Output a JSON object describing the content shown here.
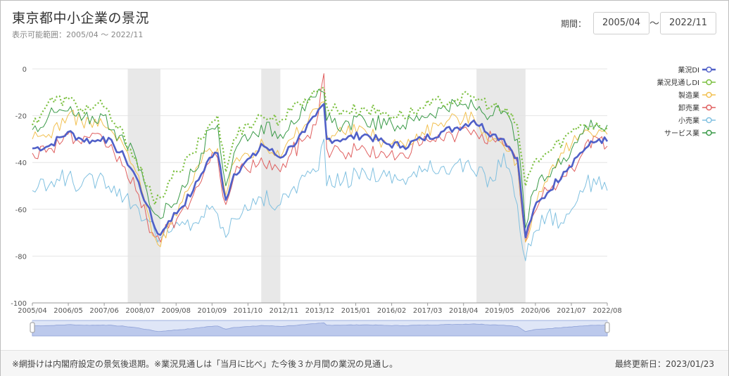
{
  "header": {
    "title": "東京都中小企業の景況",
    "subtitle": "表示可能範囲：2005/04 ～ 2022/11",
    "period_label": "期間：",
    "start_date": "2005/04",
    "tilde": "～",
    "end_date": "2022/11"
  },
  "footer": {
    "note": "※網掛けは内閣府設定の景気後退期。※業況見通しは「当月に比べ」た今後３か月間の業況の見通し。",
    "updated": "最終更新日：2023/01/23"
  },
  "colors": {
    "業況DI": "#5060c8",
    "業況見通しDI": "#7cc040",
    "製造業": "#f2c050",
    "卸売業": "#e06060",
    "小売業": "#80c0e0",
    "サービス業": "#3a9a48",
    "recession": "#e8e8e8"
  },
  "chart_data": {
    "type": "line",
    "x_start": "2005/04",
    "x_end": "2022/11",
    "x_tick_labels": [
      "2005/04",
      "2006/05",
      "2007/06",
      "2008/07",
      "2009/08",
      "2010/09",
      "2011/10",
      "2012/11",
      "2013/12",
      "2015/01",
      "2016/02",
      "2017/03",
      "2018/04",
      "2019/05",
      "2020/06",
      "2021/07",
      "2022/08"
    ],
    "y_ticks": [
      0,
      -20,
      -40,
      -60,
      -80,
      -100
    ],
    "ylim": [
      -100,
      0
    ],
    "grid": true,
    "legend_position": "right",
    "recession_periods": [
      [
        "2008/03",
        "2009/03"
      ],
      [
        "2012/04",
        "2012/11"
      ],
      [
        "2018/11",
        "2020/05"
      ]
    ],
    "series": [
      {
        "name": "業況DI",
        "key": "gyokyo",
        "anchors": [
          [
            "2005/04",
            -34
          ],
          [
            "2005/10",
            -33
          ],
          [
            "2006/05",
            -27
          ],
          [
            "2006/10",
            -30
          ],
          [
            "2007/03",
            -31
          ],
          [
            "2007/06",
            -29
          ],
          [
            "2007/10",
            -33
          ],
          [
            "2008/02",
            -38
          ],
          [
            "2008/06",
            -46
          ],
          [
            "2008/10",
            -58
          ],
          [
            "2009/01",
            -68
          ],
          [
            "2009/03",
            -71
          ],
          [
            "2009/06",
            -65
          ],
          [
            "2009/10",
            -60
          ],
          [
            "2010/03",
            -52
          ],
          [
            "2010/06",
            -45
          ],
          [
            "2010/09",
            -38
          ],
          [
            "2010/12",
            -36
          ],
          [
            "2011/03",
            -56
          ],
          [
            "2011/06",
            -45
          ],
          [
            "2011/10",
            -40
          ],
          [
            "2012/02",
            -37
          ],
          [
            "2012/04",
            -32
          ],
          [
            "2012/11",
            -38
          ],
          [
            "2013/03",
            -33
          ],
          [
            "2013/08",
            -27
          ],
          [
            "2013/12",
            -20
          ],
          [
            "2014/03",
            -15
          ],
          [
            "2014/04",
            -30
          ],
          [
            "2014/10",
            -30
          ],
          [
            "2015/06",
            -28
          ],
          [
            "2016/02",
            -32
          ],
          [
            "2016/08",
            -33
          ],
          [
            "2017/03",
            -30
          ],
          [
            "2017/10",
            -27
          ],
          [
            "2018/04",
            -25
          ],
          [
            "2018/10",
            -22
          ],
          [
            "2019/05",
            -28
          ],
          [
            "2019/09",
            -30
          ],
          [
            "2020/02",
            -38
          ],
          [
            "2020/05",
            -72
          ],
          [
            "2020/08",
            -60
          ],
          [
            "2021/01",
            -53
          ],
          [
            "2021/07",
            -44
          ],
          [
            "2022/01",
            -36
          ],
          [
            "2022/03",
            -34
          ],
          [
            "2022/08",
            -30
          ],
          [
            "2022/11",
            -31
          ]
        ]
      },
      {
        "name": "業況見通しDI",
        "key": "mitoshi",
        "anchors": [
          [
            "2005/04",
            -24
          ],
          [
            "2005/10",
            -14
          ],
          [
            "2006/05",
            -13
          ],
          [
            "2006/10",
            -17
          ],
          [
            "2007/06",
            -16
          ],
          [
            "2007/10",
            -23
          ],
          [
            "2008/02",
            -30
          ],
          [
            "2008/06",
            -38
          ],
          [
            "2008/10",
            -50
          ],
          [
            "2009/01",
            -58
          ],
          [
            "2009/03",
            -55
          ],
          [
            "2009/06",
            -48
          ],
          [
            "2009/10",
            -44
          ],
          [
            "2010/03",
            -36
          ],
          [
            "2010/06",
            -30
          ],
          [
            "2010/09",
            -24
          ],
          [
            "2010/12",
            -20
          ],
          [
            "2011/03",
            -44
          ],
          [
            "2011/06",
            -30
          ],
          [
            "2011/10",
            -24
          ],
          [
            "2012/02",
            -22
          ],
          [
            "2012/04",
            -20
          ],
          [
            "2012/11",
            -22
          ],
          [
            "2013/03",
            -18
          ],
          [
            "2013/08",
            -13
          ],
          [
            "2013/12",
            -10
          ],
          [
            "2014/03",
            -8
          ],
          [
            "2014/04",
            -16
          ],
          [
            "2014/10",
            -18
          ],
          [
            "2015/06",
            -17
          ],
          [
            "2016/02",
            -19
          ],
          [
            "2016/08",
            -20
          ],
          [
            "2017/03",
            -17
          ],
          [
            "2017/10",
            -14
          ],
          [
            "2018/04",
            -13
          ],
          [
            "2018/10",
            -12
          ],
          [
            "2019/05",
            -16
          ],
          [
            "2019/09",
            -18
          ],
          [
            "2020/02",
            -24
          ],
          [
            "2020/05",
            -50
          ],
          [
            "2020/08",
            -40
          ],
          [
            "2021/01",
            -36
          ],
          [
            "2021/07",
            -30
          ],
          [
            "2022/01",
            -24
          ],
          [
            "2022/03",
            -24
          ],
          [
            "2022/08",
            -24
          ],
          [
            "2022/11",
            -25
          ]
        ]
      },
      {
        "name": "製造業",
        "key": "seizo",
        "anchors": [
          [
            "2005/04",
            -30
          ],
          [
            "2005/10",
            -28
          ],
          [
            "2006/05",
            -20
          ],
          [
            "2006/10",
            -22
          ],
          [
            "2007/06",
            -24
          ],
          [
            "2007/10",
            -28
          ],
          [
            "2008/02",
            -34
          ],
          [
            "2008/06",
            -44
          ],
          [
            "2008/10",
            -60
          ],
          [
            "2009/01",
            -72
          ],
          [
            "2009/03",
            -76
          ],
          [
            "2009/06",
            -66
          ],
          [
            "2009/10",
            -58
          ],
          [
            "2010/03",
            -48
          ],
          [
            "2010/06",
            -40
          ],
          [
            "2010/09",
            -34
          ],
          [
            "2010/12",
            -34
          ],
          [
            "2011/03",
            -54
          ],
          [
            "2011/06",
            -40
          ],
          [
            "2011/10",
            -36
          ],
          [
            "2012/02",
            -35
          ],
          [
            "2012/04",
            -30
          ],
          [
            "2012/11",
            -38
          ],
          [
            "2013/03",
            -30
          ],
          [
            "2013/08",
            -24
          ],
          [
            "2013/12",
            -17
          ],
          [
            "2014/03",
            -14
          ],
          [
            "2014/04",
            -28
          ],
          [
            "2014/10",
            -27
          ],
          [
            "2015/06",
            -26
          ],
          [
            "2016/02",
            -32
          ],
          [
            "2016/08",
            -32
          ],
          [
            "2017/03",
            -27
          ],
          [
            "2017/10",
            -23
          ],
          [
            "2018/04",
            -21
          ],
          [
            "2018/10",
            -21
          ],
          [
            "2019/05",
            -30
          ],
          [
            "2019/09",
            -33
          ],
          [
            "2020/02",
            -40
          ],
          [
            "2020/05",
            -74
          ],
          [
            "2020/08",
            -60
          ],
          [
            "2021/01",
            -48
          ],
          [
            "2021/07",
            -36
          ],
          [
            "2022/01",
            -28
          ],
          [
            "2022/03",
            -26
          ],
          [
            "2022/08",
            -26
          ],
          [
            "2022/11",
            -28
          ]
        ]
      },
      {
        "name": "卸売業",
        "key": "oroshi",
        "anchors": [
          [
            "2005/04",
            -36
          ],
          [
            "2005/10",
            -34
          ],
          [
            "2006/05",
            -28
          ],
          [
            "2006/10",
            -32
          ],
          [
            "2007/06",
            -30
          ],
          [
            "2007/10",
            -36
          ],
          [
            "2008/02",
            -42
          ],
          [
            "2008/06",
            -52
          ],
          [
            "2008/10",
            -64
          ],
          [
            "2009/01",
            -72
          ],
          [
            "2009/03",
            -74
          ],
          [
            "2009/06",
            -68
          ],
          [
            "2009/10",
            -62
          ],
          [
            "2010/03",
            -54
          ],
          [
            "2010/06",
            -48
          ],
          [
            "2010/09",
            -40
          ],
          [
            "2010/12",
            -38
          ],
          [
            "2011/03",
            -58
          ],
          [
            "2011/06",
            -46
          ],
          [
            "2011/10",
            -42
          ],
          [
            "2012/02",
            -42
          ],
          [
            "2012/04",
            -38
          ],
          [
            "2012/11",
            -44
          ],
          [
            "2013/03",
            -36
          ],
          [
            "2013/08",
            -30
          ],
          [
            "2013/12",
            -24
          ],
          [
            "2014/03",
            -2
          ],
          [
            "2014/04",
            -34
          ],
          [
            "2014/10",
            -36
          ],
          [
            "2015/06",
            -34
          ],
          [
            "2016/02",
            -38
          ],
          [
            "2016/08",
            -36
          ],
          [
            "2017/03",
            -32
          ],
          [
            "2017/10",
            -30
          ],
          [
            "2018/04",
            -28
          ],
          [
            "2018/10",
            -26
          ],
          [
            "2019/05",
            -30
          ],
          [
            "2019/09",
            -33
          ],
          [
            "2020/02",
            -40
          ],
          [
            "2020/05",
            -74
          ],
          [
            "2020/08",
            -62
          ],
          [
            "2021/01",
            -52
          ],
          [
            "2021/07",
            -46
          ],
          [
            "2022/01",
            -38
          ],
          [
            "2022/03",
            -32
          ],
          [
            "2022/08",
            -30
          ],
          [
            "2022/11",
            -33
          ]
        ]
      },
      {
        "name": "小売業",
        "key": "kouri",
        "anchors": [
          [
            "2005/04",
            -52
          ],
          [
            "2005/10",
            -50
          ],
          [
            "2006/05",
            -46
          ],
          [
            "2006/10",
            -50
          ],
          [
            "2007/06",
            -46
          ],
          [
            "2007/10",
            -50
          ],
          [
            "2008/02",
            -55
          ],
          [
            "2008/06",
            -58
          ],
          [
            "2008/10",
            -64
          ],
          [
            "2009/01",
            -70
          ],
          [
            "2009/03",
            -72
          ],
          [
            "2009/06",
            -70
          ],
          [
            "2009/10",
            -67
          ],
          [
            "2010/03",
            -66
          ],
          [
            "2010/06",
            -63
          ],
          [
            "2010/09",
            -60
          ],
          [
            "2010/12",
            -62
          ],
          [
            "2011/03",
            -72
          ],
          [
            "2011/06",
            -64
          ],
          [
            "2011/10",
            -58
          ],
          [
            "2012/02",
            -58
          ],
          [
            "2012/04",
            -55
          ],
          [
            "2012/11",
            -58
          ],
          [
            "2013/03",
            -52
          ],
          [
            "2013/08",
            -46
          ],
          [
            "2013/12",
            -44
          ],
          [
            "2014/03",
            -30
          ],
          [
            "2014/04",
            -50
          ],
          [
            "2014/10",
            -48
          ],
          [
            "2015/06",
            -44
          ],
          [
            "2016/02",
            -46
          ],
          [
            "2016/08",
            -47
          ],
          [
            "2017/03",
            -44
          ],
          [
            "2017/10",
            -42
          ],
          [
            "2018/04",
            -40
          ],
          [
            "2018/10",
            -44
          ],
          [
            "2019/05",
            -48
          ],
          [
            "2019/09",
            -36
          ],
          [
            "2020/02",
            -58
          ],
          [
            "2020/05",
            -82
          ],
          [
            "2020/08",
            -70
          ],
          [
            "2021/01",
            -62
          ],
          [
            "2021/07",
            -66
          ],
          [
            "2022/01",
            -52
          ],
          [
            "2022/03",
            -50
          ],
          [
            "2022/08",
            -46
          ],
          [
            "2022/11",
            -52
          ]
        ]
      },
      {
        "name": "サービス業",
        "key": "service",
        "anchors": [
          [
            "2005/04",
            -26
          ],
          [
            "2005/10",
            -20
          ],
          [
            "2006/05",
            -18
          ],
          [
            "2006/10",
            -22
          ],
          [
            "2007/06",
            -20
          ],
          [
            "2007/10",
            -26
          ],
          [
            "2008/02",
            -32
          ],
          [
            "2008/06",
            -38
          ],
          [
            "2008/10",
            -52
          ],
          [
            "2009/01",
            -62
          ],
          [
            "2009/03",
            -64
          ],
          [
            "2009/06",
            -58
          ],
          [
            "2009/10",
            -54
          ],
          [
            "2010/03",
            -44
          ],
          [
            "2010/06",
            -36
          ],
          [
            "2010/09",
            -26
          ],
          [
            "2010/12",
            -24
          ],
          [
            "2011/03",
            -50
          ],
          [
            "2011/06",
            -36
          ],
          [
            "2011/10",
            -28
          ],
          [
            "2012/02",
            -28
          ],
          [
            "2012/04",
            -24
          ],
          [
            "2012/11",
            -28
          ],
          [
            "2013/03",
            -22
          ],
          [
            "2013/08",
            -18
          ],
          [
            "2013/12",
            -12
          ],
          [
            "2014/03",
            -10
          ],
          [
            "2014/04",
            -22
          ],
          [
            "2014/10",
            -24
          ],
          [
            "2015/06",
            -22
          ],
          [
            "2016/02",
            -24
          ],
          [
            "2016/08",
            -24
          ],
          [
            "2017/03",
            -20
          ],
          [
            "2017/10",
            -17
          ],
          [
            "2018/04",
            -16
          ],
          [
            "2018/10",
            -16
          ],
          [
            "2019/05",
            -20
          ],
          [
            "2019/09",
            -18
          ],
          [
            "2020/02",
            -30
          ],
          [
            "2020/05",
            -68
          ],
          [
            "2020/08",
            -52
          ],
          [
            "2021/01",
            -46
          ],
          [
            "2021/07",
            -38
          ],
          [
            "2022/01",
            -28
          ],
          [
            "2022/03",
            -24
          ],
          [
            "2022/08",
            -25
          ],
          [
            "2022/11",
            -24
          ]
        ]
      }
    ]
  }
}
